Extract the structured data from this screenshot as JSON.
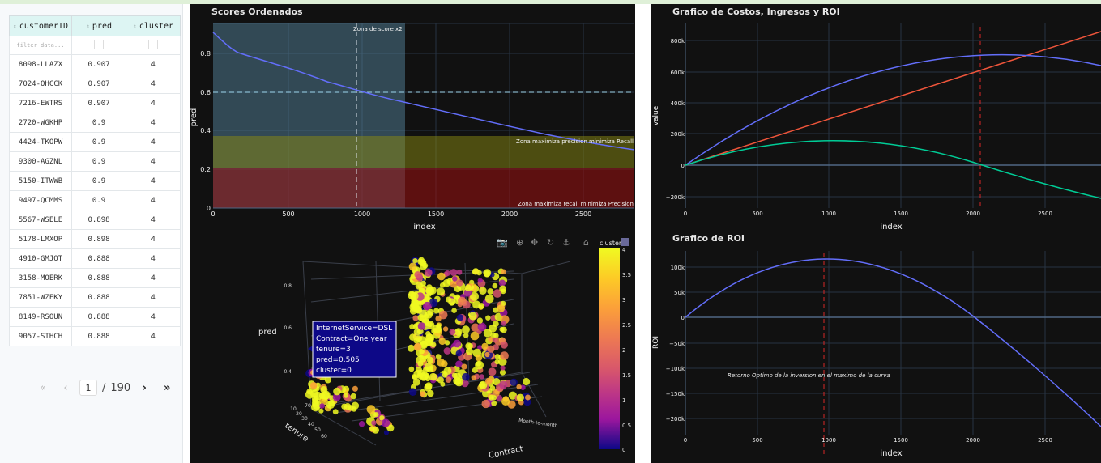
{
  "table": {
    "columns": [
      "customerID",
      "pred",
      "cluster"
    ],
    "filter_placeholder": "filter data...",
    "rows": [
      [
        "8098-LLAZX",
        "0.907",
        "4"
      ],
      [
        "7024-OHCCK",
        "0.907",
        "4"
      ],
      [
        "7216-EWTRS",
        "0.907",
        "4"
      ],
      [
        "2720-WGKHP",
        "0.9",
        "4"
      ],
      [
        "4424-TKOPW",
        "0.9",
        "4"
      ],
      [
        "9300-AGZNL",
        "0.9",
        "4"
      ],
      [
        "5150-ITWWB",
        "0.9",
        "4"
      ],
      [
        "9497-QCMMS",
        "0.9",
        "4"
      ],
      [
        "5567-WSELE",
        "0.898",
        "4"
      ],
      [
        "5178-LMXOP",
        "0.898",
        "4"
      ],
      [
        "4910-GMJOT",
        "0.888",
        "4"
      ],
      [
        "3158-MOERK",
        "0.888",
        "4"
      ],
      [
        "7851-WZEKY",
        "0.888",
        "4"
      ],
      [
        "8149-RSOUN",
        "0.888",
        "4"
      ],
      [
        "9057-SIHCH",
        "0.888",
        "4"
      ]
    ]
  },
  "pagination": {
    "first": "«",
    "prev": "‹",
    "current": "1",
    "separator": "/",
    "total": "190",
    "next": "›",
    "last": "»"
  },
  "scores_chart": {
    "title": "Scores Ordenados",
    "xlabel": "index",
    "ylabel": "pred",
    "annotation_top": "Zona de score x2",
    "annotation_mid": "Zona maximiza precision minimiza Recall",
    "annotation_bot": "Zona maximiza recall minimiza Precision",
    "xticks": [
      "0",
      "500",
      "1000",
      "1500",
      "2000",
      "2500"
    ],
    "yticks": [
      "0",
      "0.2",
      "0.4",
      "0.6",
      "0.8"
    ]
  },
  "scatter3d": {
    "ylabel": "pred",
    "tenure_label": "tenure",
    "contract_label": "Contract",
    "contract_tick": "Month-to-month",
    "pred_ticks": [
      "0.8",
      "0.6",
      "0.4"
    ],
    "tenure_ticks": [
      "10",
      "20",
      "30",
      "40",
      "50",
      "60",
      "70"
    ],
    "colorbar_title": "cluster",
    "colorbar_ticks": [
      "4",
      "3.5",
      "3",
      "2.5",
      "2",
      "1.5",
      "1",
      "0.5",
      "0"
    ],
    "tooltip": [
      "InternetService=DSL",
      "Contract=One year",
      "tenure=3",
      "pred=0.505",
      "cluster=0"
    ]
  },
  "costs_chart": {
    "title": "Grafico de Costos, Ingresos y ROI",
    "xlabel": "index",
    "ylabel": "value",
    "xticks": [
      "0",
      "500",
      "1000",
      "1500",
      "2000",
      "2500"
    ],
    "yticks": [
      "800k",
      "600k",
      "400k",
      "200k",
      "0",
      "−200k"
    ]
  },
  "roi_chart": {
    "title": "Grafico de ROI",
    "xlabel": "index",
    "ylabel": "ROI",
    "annotation": "Retorno Optimo de la inversion en el maximo de la curva",
    "xticks": [
      "0",
      "500",
      "1000",
      "1500",
      "2000",
      "2500"
    ],
    "yticks": [
      "100k",
      "50k",
      "0",
      "−50k",
      "−100k",
      "−150k",
      "−200k"
    ]
  },
  "colors": {
    "panel_bg": "#111111",
    "grid": "#283442",
    "blue": "#636efa",
    "red": "#ef553b",
    "green": "#00cc96",
    "dash_red": "#d62728"
  },
  "icons": [
    "camera-icon",
    "zoom-icon",
    "pan-icon",
    "orbit-icon",
    "turntable-icon",
    "home-icon",
    "plotly-logo-icon"
  ]
}
